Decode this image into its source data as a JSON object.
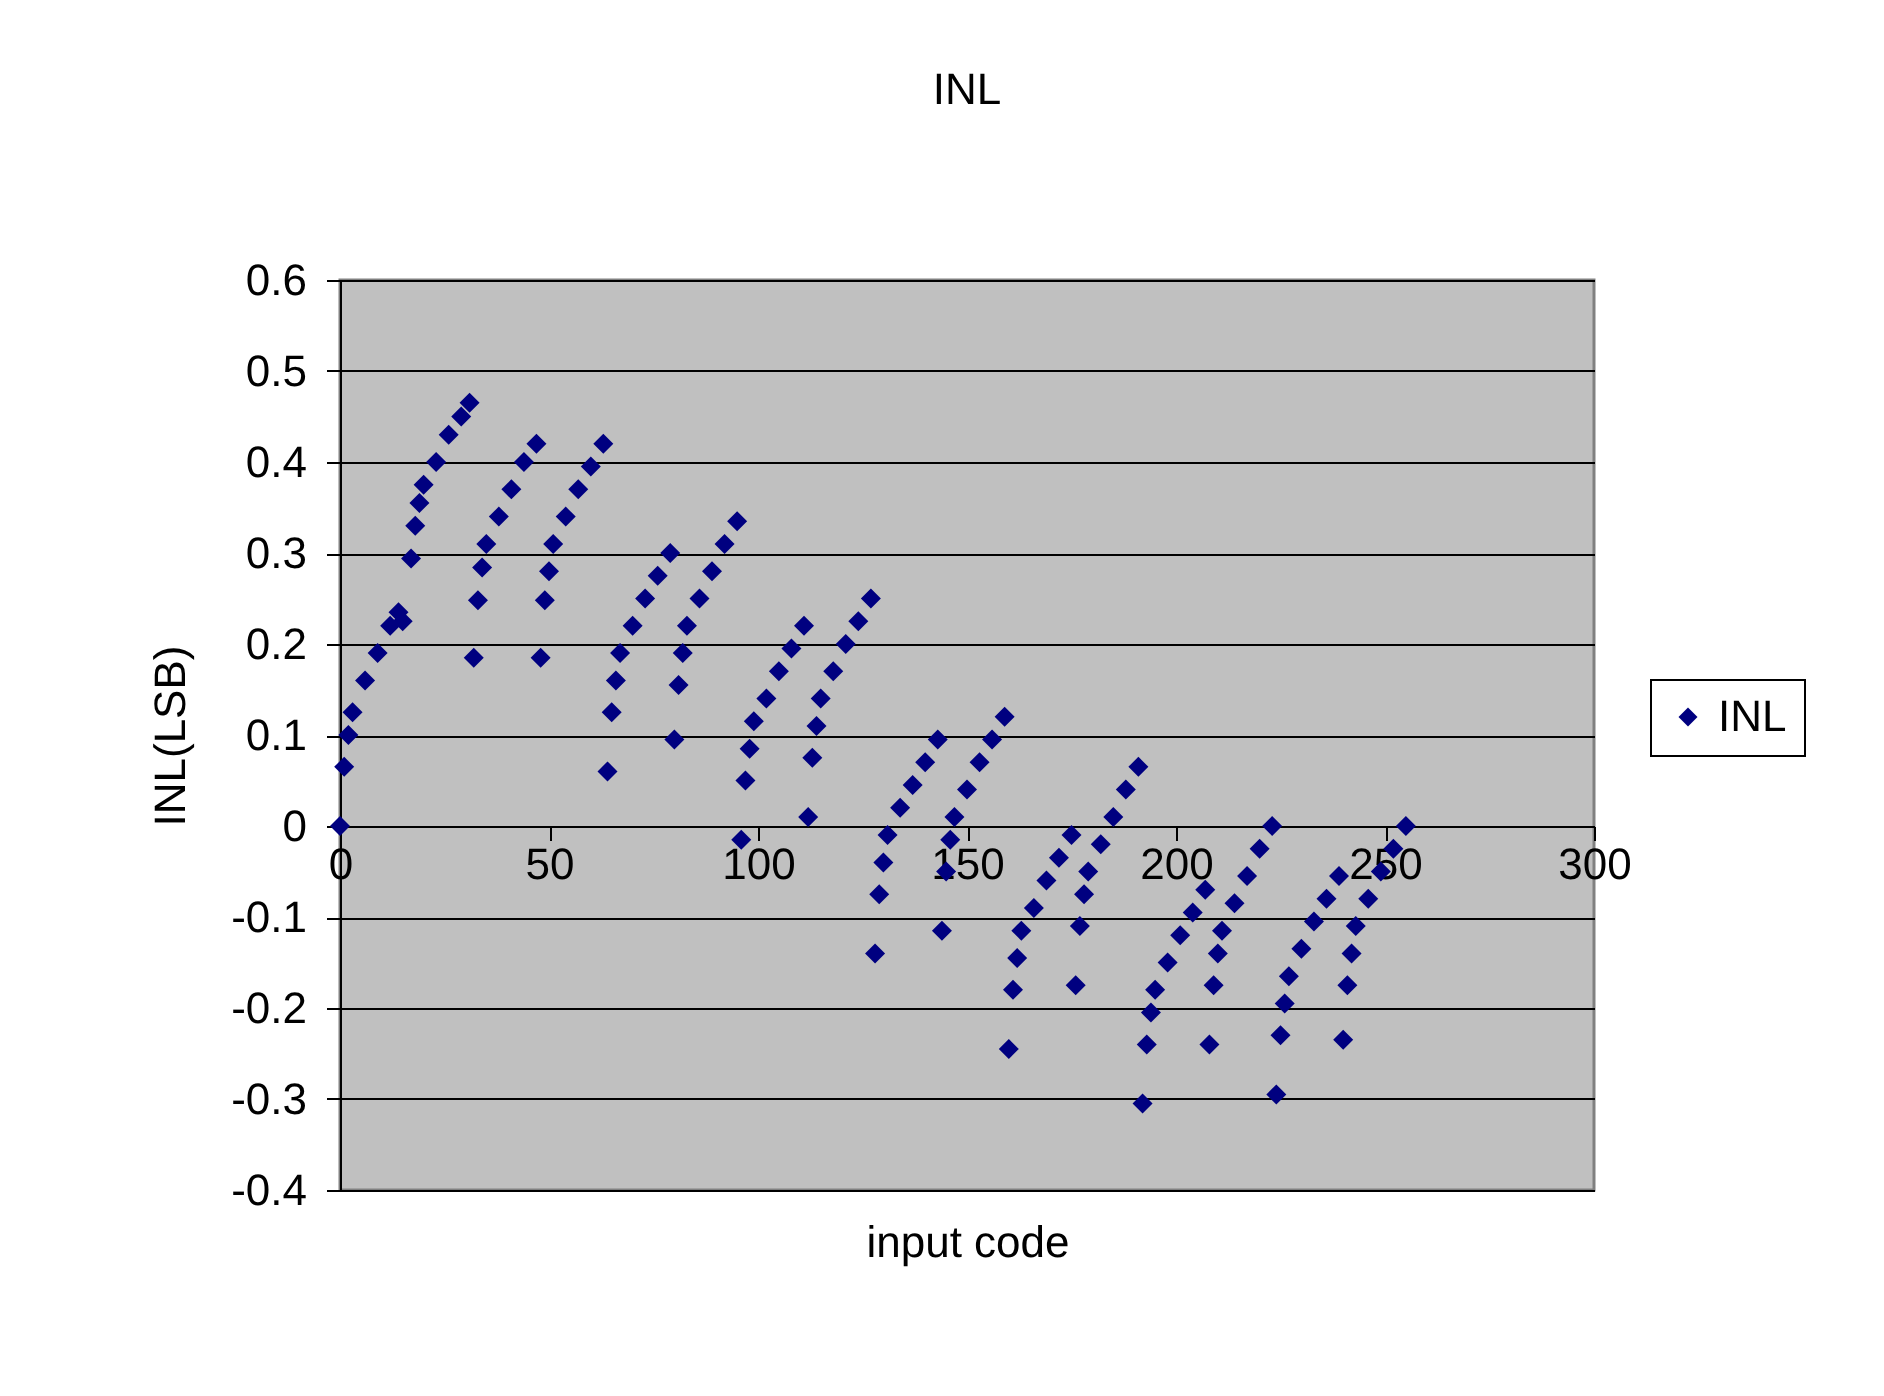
{
  "chart_data": {
    "type": "scatter",
    "title": "INL",
    "xlabel": "input code",
    "ylabel": "INL(LSB)",
    "series": [
      {
        "name": "INL",
        "color": "#000080",
        "x": [
          0,
          1,
          2,
          3,
          6,
          9,
          12,
          14,
          15,
          17,
          18,
          19,
          20,
          23,
          26,
          29,
          31,
          32,
          33,
          34,
          35,
          38,
          41,
          44,
          47,
          48,
          49,
          50,
          51,
          54,
          57,
          60,
          63,
          64,
          65,
          66,
          67,
          70,
          73,
          76,
          79,
          80,
          81,
          82,
          83,
          86,
          89,
          92,
          95,
          96,
          97,
          98,
          99,
          102,
          105,
          108,
          111,
          112,
          113,
          114,
          115,
          118,
          121,
          124,
          127,
          128,
          129,
          130,
          131,
          134,
          137,
          140,
          143,
          144,
          145,
          146,
          147,
          150,
          153,
          156,
          159,
          160,
          161,
          162,
          163,
          166,
          169,
          172,
          175,
          176,
          177,
          178,
          179,
          182,
          185,
          188,
          191,
          192,
          193,
          194,
          195,
          198,
          201,
          204,
          207,
          208,
          209,
          210,
          211,
          214,
          217,
          220,
          223,
          224,
          225,
          226,
          227,
          230,
          233,
          236,
          239,
          240,
          241,
          242,
          243,
          246,
          249,
          252,
          255
        ],
        "values": [
          0,
          0.065,
          0.1,
          0.125,
          0.16,
          0.19,
          0.22,
          0.235,
          0.225,
          0.294,
          0.33,
          0.355,
          0.375,
          0.4,
          0.43,
          0.45,
          0.465,
          0.185,
          0.248,
          0.284,
          0.31,
          0.34,
          0.37,
          0.4,
          0.42,
          0.185,
          0.248,
          0.28,
          0.31,
          0.34,
          0.37,
          0.395,
          0.42,
          0.06,
          0.125,
          0.16,
          0.19,
          0.22,
          0.25,
          0.275,
          0.3,
          0.095,
          0.155,
          0.19,
          0.22,
          0.25,
          0.28,
          0.31,
          0.335,
          -0.015,
          0.05,
          0.085,
          0.115,
          0.14,
          0.17,
          0.195,
          0.22,
          0.01,
          0.075,
          0.11,
          0.14,
          0.17,
          0.2,
          0.225,
          0.25,
          -0.14,
          -0.075,
          -0.04,
          -0.01,
          0.02,
          0.045,
          0.07,
          0.095,
          -0.115,
          -0.05,
          -0.015,
          0.01,
          0.04,
          0.07,
          0.095,
          0.12,
          -0.245,
          -0.18,
          -0.145,
          -0.115,
          -0.09,
          -0.06,
          -0.035,
          -0.01,
          -0.175,
          -0.11,
          -0.075,
          -0.05,
          -0.02,
          0.01,
          0.04,
          0.065,
          -0.305,
          -0.24,
          -0.205,
          -0.18,
          -0.15,
          -0.12,
          -0.095,
          -0.07,
          -0.24,
          -0.175,
          -0.14,
          -0.115,
          -0.085,
          -0.055,
          -0.025,
          0,
          -0.295,
          -0.23,
          -0.195,
          -0.165,
          -0.135,
          -0.105,
          -0.08,
          -0.055,
          -0.235,
          -0.175,
          -0.14,
          -0.11,
          -0.08,
          -0.05,
          -0.025,
          0
        ]
      }
    ],
    "xlim": [
      0,
      300
    ],
    "xticks": [
      0,
      50,
      100,
      150,
      200,
      250,
      300
    ],
    "ylim": [
      -0.4,
      0.6
    ],
    "yticks": [
      -0.4,
      -0.3,
      -0.2,
      -0.1,
      0,
      0.1,
      0.2,
      0.3,
      0.4,
      0.5,
      0.6
    ],
    "grid": "y",
    "legend": "right",
    "marker": "diamond"
  }
}
